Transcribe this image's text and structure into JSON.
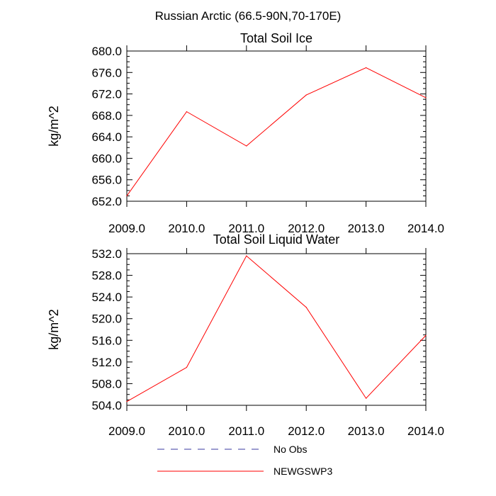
{
  "figure_title": "Russian Arctic (66.5-90N,70-170E)",
  "legend": [
    {
      "label": "No Obs",
      "color": "#3a3aa0",
      "style": "dashed"
    },
    {
      "label": "NEWGSWP3",
      "color": "#ff0000",
      "style": "solid"
    }
  ],
  "chart_data": [
    {
      "type": "line",
      "title": "Total Soil Ice",
      "ylabel": "kg/m^2",
      "xlabel": "",
      "xlim": [
        2009.0,
        2014.0
      ],
      "ylim": [
        652.0,
        680.0
      ],
      "xticks": [
        "2009.0",
        "2010.0",
        "2011.0",
        "2012.0",
        "2013.0",
        "2014.0"
      ],
      "yticks": [
        "652.0",
        "656.0",
        "660.0",
        "664.0",
        "668.0",
        "672.0",
        "676.0",
        "680.0"
      ],
      "series": [
        {
          "name": "NEWGSWP3",
          "color": "#ff0000",
          "x": [
            2009,
            2010,
            2011,
            2012,
            2013,
            2014
          ],
          "values": [
            653.0,
            668.7,
            662.3,
            671.8,
            676.9,
            671.3
          ]
        }
      ]
    },
    {
      "type": "line",
      "title": "Total Soil Liquid Water",
      "ylabel": "kg/m^2",
      "xlabel": "",
      "xlim": [
        2009.0,
        2014.0
      ],
      "ylim": [
        504.0,
        532.0
      ],
      "xticks": [
        "2009.0",
        "2010.0",
        "2011.0",
        "2012.0",
        "2013.0",
        "2014.0"
      ],
      "yticks": [
        "504.0",
        "508.0",
        "512.0",
        "516.0",
        "520.0",
        "524.0",
        "528.0",
        "532.0"
      ],
      "series": [
        {
          "name": "NEWGSWP3",
          "color": "#ff0000",
          "x": [
            2009,
            2010,
            2011,
            2012,
            2013,
            2014
          ],
          "values": [
            504.7,
            511.0,
            531.6,
            522.1,
            505.3,
            516.9
          ]
        }
      ]
    }
  ]
}
